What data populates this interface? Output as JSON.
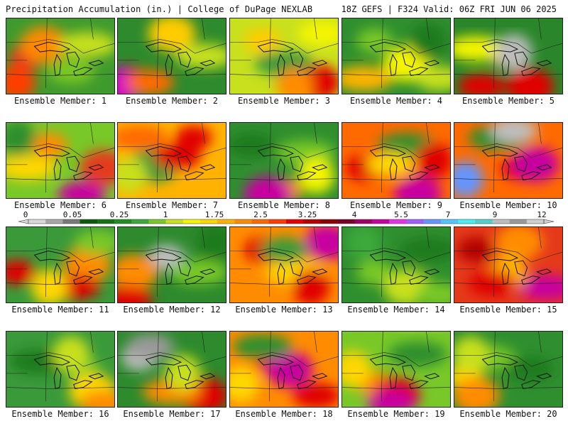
{
  "header": {
    "title": "Precipitation Accumulation (in.) | College of DuPage NEXLAB",
    "run_info": "18Z GEFS | F324 Valid: 06Z FRI JUN 06 2025"
  },
  "colorbar": {
    "labels": [
      "0",
      "0.05",
      "0.25",
      "1",
      "1.75",
      "2.5",
      "3.25",
      "4",
      "5.5",
      "7",
      "9",
      "12"
    ],
    "colors": [
      "#d8d8d8",
      "#a8a8a8",
      "#7a7a7a",
      "#0c5a0c",
      "#137513",
      "#1f8f1f",
      "#3aa93a",
      "#78c828",
      "#c8e01e",
      "#f5f500",
      "#ffd700",
      "#ffb300",
      "#ff8c00",
      "#ff6a00",
      "#ff3c00",
      "#e80000",
      "#b40000",
      "#8c0000",
      "#780028",
      "#a00064",
      "#c800a0",
      "#e632e6",
      "#a060ff",
      "#6496ff",
      "#50c8ff",
      "#46f0f0",
      "#50d2c8",
      "#bebebe",
      "#9a9a9a",
      "#cfcfcf"
    ]
  },
  "members": [
    {
      "label": "Ensemble Member: 1",
      "base": "#3f9a2e",
      "blobs": [
        [
          "#e53a1a",
          0.2,
          0.5
        ],
        [
          "#ff8a00",
          0.35,
          0.35
        ],
        [
          "#c8e01e",
          0.75,
          0.35
        ],
        [
          "#ff3c00",
          0.1,
          0.85
        ],
        [
          "#7ac820",
          0.6,
          0.7
        ]
      ]
    },
    {
      "label": "Ensemble Member: 2",
      "base": "#2d8a2d",
      "blobs": [
        [
          "#e00000",
          0.1,
          0.8
        ],
        [
          "#ffcc00",
          0.5,
          0.2
        ],
        [
          "#c8e01e",
          0.8,
          0.5
        ],
        [
          "#d400c0",
          0.02,
          0.9
        ],
        [
          "#ff6a00",
          0.3,
          0.85
        ]
      ]
    },
    {
      "label": "Ensemble Member: 3",
      "base": "#c8e01e",
      "blobs": [
        [
          "#ffcc00",
          0.3,
          0.3
        ],
        [
          "#e00000",
          0.8,
          0.85
        ],
        [
          "#3a9a3a",
          0.5,
          0.6
        ],
        [
          "#ff8c00",
          0.6,
          0.9
        ],
        [
          "#f5f500",
          0.85,
          0.2
        ]
      ]
    },
    {
      "label": "Ensemble Member: 4",
      "base": "#2f8f2f",
      "blobs": [
        [
          "#78c828",
          0.3,
          0.3
        ],
        [
          "#f5f500",
          0.6,
          0.6
        ],
        [
          "#ffb300",
          0.2,
          0.8
        ],
        [
          "#1f7a1f",
          0.8,
          0.3
        ],
        [
          "#c8e01e",
          0.9,
          0.8
        ]
      ]
    },
    {
      "label": "Ensemble Member: 5",
      "base": "#2a862a",
      "blobs": [
        [
          "#ff8c00",
          0.5,
          0.5
        ],
        [
          "#e00000",
          0.7,
          0.9
        ],
        [
          "#f5f500",
          0.2,
          0.4
        ],
        [
          "#bebebe",
          0.55,
          0.45
        ],
        [
          "#e00000",
          0.25,
          0.9
        ]
      ]
    },
    {
      "label": "Ensemble Member: 6",
      "base": "#78c828",
      "blobs": [
        [
          "#ff8c00",
          0.4,
          0.3
        ],
        [
          "#e53a1a",
          0.9,
          0.6
        ],
        [
          "#ffd700",
          0.2,
          0.6
        ],
        [
          "#2f8f2f",
          0.1,
          0.2
        ],
        [
          "#c800a0",
          0.7,
          0.95
        ]
      ]
    },
    {
      "label": "Ensemble Member: 7",
      "base": "#ffb300",
      "blobs": [
        [
          "#e00000",
          0.7,
          0.2
        ],
        [
          "#3a9a3a",
          0.35,
          0.55
        ],
        [
          "#ff6a00",
          0.2,
          0.2
        ],
        [
          "#c8e01e",
          0.1,
          0.7
        ],
        [
          "#e00000",
          0.55,
          0.45
        ]
      ]
    },
    {
      "label": "Ensemble Member: 8",
      "base": "#2f8f2f",
      "blobs": [
        [
          "#ff8c00",
          0.5,
          0.9
        ],
        [
          "#c800a0",
          0.35,
          0.95
        ],
        [
          "#78c828",
          0.7,
          0.4
        ],
        [
          "#f5f500",
          0.8,
          0.7
        ],
        [
          "#1f7a1f",
          0.2,
          0.3
        ]
      ]
    },
    {
      "label": "Ensemble Member: 9",
      "base": "#ff6a00",
      "blobs": [
        [
          "#e00000",
          0.2,
          0.6
        ],
        [
          "#c800a0",
          0.7,
          0.95
        ],
        [
          "#2f8f2f",
          0.6,
          0.3
        ],
        [
          "#e00000",
          0.85,
          0.5
        ],
        [
          "#ffd700",
          0.45,
          0.55
        ]
      ]
    },
    {
      "label": "Ensemble Member: 10",
      "base": "#ff6a00",
      "blobs": [
        [
          "#e00000",
          0.6,
          0.6
        ],
        [
          "#c800a0",
          0.75,
          0.55
        ],
        [
          "#2f8f2f",
          0.4,
          0.2
        ],
        [
          "#6496ff",
          0.1,
          0.75
        ],
        [
          "#bebebe",
          0.55,
          0.1
        ]
      ]
    },
    {
      "label": "Ensemble Member: 11",
      "base": "#3a9a3a",
      "blobs": [
        [
          "#e00000",
          0.1,
          0.6
        ],
        [
          "#ff8c00",
          0.75,
          0.5
        ],
        [
          "#e00000",
          0.6,
          0.8
        ],
        [
          "#ffd700",
          0.4,
          0.8
        ],
        [
          "#78c828",
          0.85,
          0.2
        ]
      ]
    },
    {
      "label": "Ensemble Member: 12",
      "base": "#2d8a2d",
      "blobs": [
        [
          "#bebebe",
          0.45,
          0.4
        ],
        [
          "#ff8c00",
          0.15,
          0.6
        ],
        [
          "#78c828",
          0.75,
          0.6
        ],
        [
          "#1f7a1f",
          0.9,
          0.2
        ],
        [
          "#e00000",
          0.1,
          0.95
        ]
      ]
    },
    {
      "label": "Ensemble Member: 13",
      "base": "#ff8c00",
      "blobs": [
        [
          "#e00000",
          0.3,
          0.3
        ],
        [
          "#c800a0",
          0.9,
          0.2
        ],
        [
          "#ffd700",
          0.6,
          0.6
        ],
        [
          "#e00000",
          0.75,
          0.8
        ],
        [
          "#3a9a3a",
          0.5,
          0.3
        ]
      ]
    },
    {
      "label": "Ensemble Member: 14",
      "base": "#2f8f2f",
      "blobs": [
        [
          "#78c828",
          0.3,
          0.6
        ],
        [
          "#c8e01e",
          0.6,
          0.8
        ],
        [
          "#1f7a1f",
          0.8,
          0.3
        ],
        [
          "#3aa93a",
          0.2,
          0.2
        ],
        [
          "#78c828",
          0.9,
          0.9
        ]
      ]
    },
    {
      "label": "Ensemble Member: 15",
      "base": "#e53a1a",
      "blobs": [
        [
          "#b40000",
          0.2,
          0.3
        ],
        [
          "#ff8c00",
          0.6,
          0.2
        ],
        [
          "#c800a0",
          0.85,
          0.8
        ],
        [
          "#ffb300",
          0.5,
          0.6
        ],
        [
          "#e00000",
          0.35,
          0.75
        ]
      ]
    },
    {
      "label": "Ensemble Member: 16",
      "base": "#3a9a3a",
      "blobs": [
        [
          "#78c828",
          0.7,
          0.5
        ],
        [
          "#ffd700",
          0.8,
          0.8
        ],
        [
          "#1f7a1f",
          0.3,
          0.4
        ],
        [
          "#c8e01e",
          0.6,
          0.3
        ],
        [
          "#ff8c00",
          0.9,
          0.95
        ]
      ]
    },
    {
      "label": "Ensemble Member: 17",
      "base": "#2d8a2d",
      "blobs": [
        [
          "#bebebe",
          0.2,
          0.35
        ],
        [
          "#e00000",
          0.8,
          0.85
        ],
        [
          "#ff8c00",
          0.5,
          0.8
        ],
        [
          "#c8e01e",
          0.6,
          0.55
        ],
        [
          "#9a9a9a",
          0.3,
          0.2
        ]
      ]
    },
    {
      "label": "Ensemble Member: 18",
      "base": "#ff8c00",
      "blobs": [
        [
          "#e00000",
          0.4,
          0.4
        ],
        [
          "#c800a0",
          0.55,
          0.5
        ],
        [
          "#2f8f2f",
          0.3,
          0.2
        ],
        [
          "#ffd700",
          0.1,
          0.7
        ],
        [
          "#e00000",
          0.8,
          0.85
        ]
      ]
    },
    {
      "label": "Ensemble Member: 19",
      "base": "#78c828",
      "blobs": [
        [
          "#ff8c00",
          0.3,
          0.7
        ],
        [
          "#e00000",
          0.5,
          0.85
        ],
        [
          "#2f8f2f",
          0.7,
          0.3
        ],
        [
          "#ffd700",
          0.1,
          0.5
        ],
        [
          "#c800a0",
          0.45,
          0.95
        ]
      ]
    },
    {
      "label": "Ensemble Member: 20",
      "base": "#2f8f2f",
      "blobs": [
        [
          "#ffd700",
          0.1,
          0.6
        ],
        [
          "#ff8c00",
          0.2,
          0.85
        ],
        [
          "#78c828",
          0.3,
          0.35
        ],
        [
          "#c8e01e",
          0.15,
          0.3
        ],
        [
          "#1f7a1f",
          0.7,
          0.5
        ]
      ]
    }
  ]
}
